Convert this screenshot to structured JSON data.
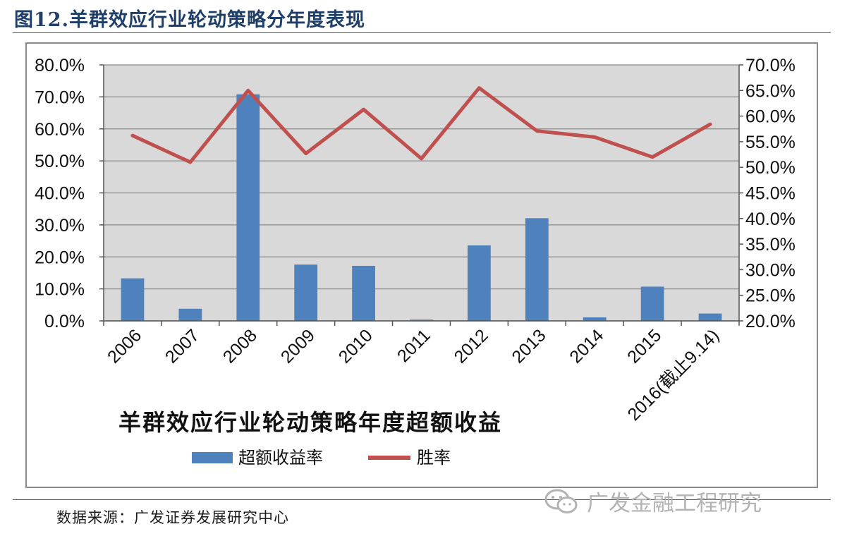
{
  "header": {
    "title": "图12.羊群效应行业轮动策略分年度表现"
  },
  "chart_data": {
    "type": "bar",
    "title": "羊群效应行业轮动策略年度超额收益",
    "categories": [
      "2006",
      "2007",
      "2008",
      "2009",
      "2010",
      "2011",
      "2012",
      "2013",
      "2014",
      "2015",
      "2016(截止9.14)"
    ],
    "series": [
      {
        "name": "超额收益率",
        "type": "bar",
        "axis": "left",
        "color": "#4f81bd",
        "values": [
          13.3,
          3.8,
          70.8,
          17.6,
          17.2,
          0.4,
          23.6,
          32.1,
          1.1,
          10.7,
          2.3
        ]
      },
      {
        "name": "胜率",
        "type": "line",
        "axis": "right",
        "color": "#c0504d",
        "values": [
          56.2,
          51.0,
          65.0,
          52.7,
          61.3,
          51.7,
          65.5,
          57.1,
          55.9,
          52.0,
          58.4
        ]
      }
    ],
    "left_axis": {
      "ylim": [
        0,
        80
      ],
      "ticks": [
        "0.0%",
        "10.0%",
        "20.0%",
        "30.0%",
        "40.0%",
        "50.0%",
        "60.0%",
        "70.0%",
        "80.0%"
      ]
    },
    "right_axis": {
      "ylim": [
        20,
        70
      ],
      "ticks": [
        "20.0%",
        "25.0%",
        "30.0%",
        "35.0%",
        "40.0%",
        "45.0%",
        "50.0%",
        "55.0%",
        "60.0%",
        "65.0%",
        "70.0%"
      ]
    },
    "legend": [
      "超额收益率",
      "胜率"
    ],
    "legend_position": "bottom-center",
    "plot_background": "#d9d9d9",
    "grid": true
  },
  "footer": {
    "source": "数据来源：广发证券发展研究中心",
    "watermark": "广发金融工程研究",
    "watermark_icon": "wechat-icon"
  }
}
